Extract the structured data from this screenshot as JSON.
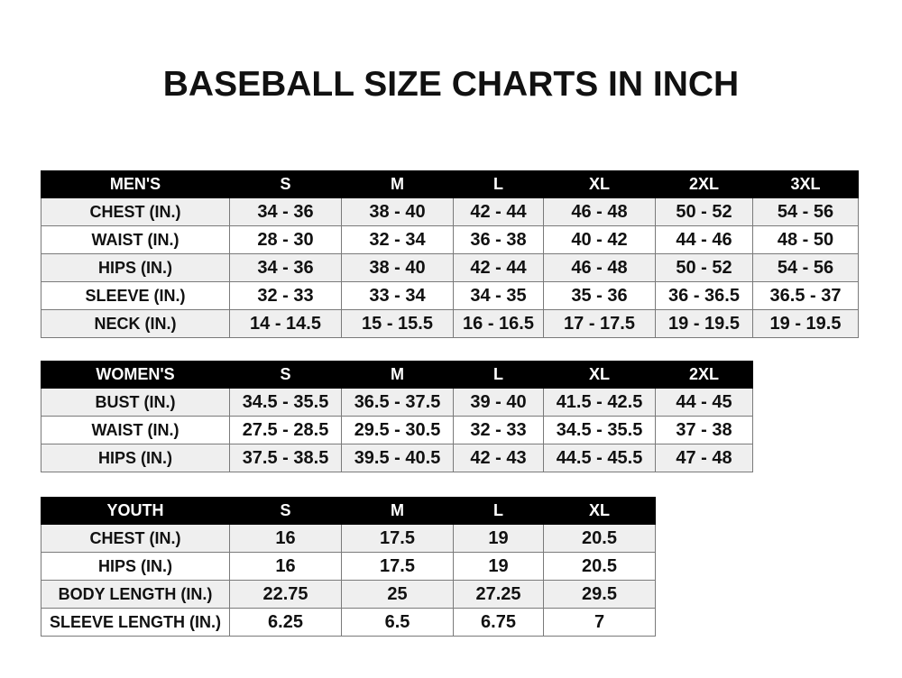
{
  "title": "BASEBALL SIZE CHARTS IN INCH",
  "tables": {
    "men": {
      "headers": [
        "MEN'S",
        "S",
        "M",
        "L",
        "XL",
        "2XL",
        "3XL"
      ],
      "rows": [
        [
          "CHEST (IN.)",
          "34 - 36",
          "38 - 40",
          "42 - 44",
          "46 - 48",
          "50 - 52",
          "54 - 56"
        ],
        [
          "WAIST (IN.)",
          "28 - 30",
          "32 - 34",
          "36 - 38",
          "40 - 42",
          "44 - 46",
          "48 - 50"
        ],
        [
          "HIPS (IN.)",
          "34 - 36",
          "38 - 40",
          "42 - 44",
          "46 - 48",
          "50 - 52",
          "54 - 56"
        ],
        [
          "SLEEVE (IN.)",
          "32 - 33",
          "33 - 34",
          "34 - 35",
          "35 - 36",
          "36 - 36.5",
          "36.5 - 37"
        ],
        [
          "NECK (IN.)",
          "14 - 14.5",
          "15 - 15.5",
          "16 - 16.5",
          "17 - 17.5",
          "19 - 19.5",
          "19 - 19.5"
        ]
      ]
    },
    "women": {
      "headers": [
        "WOMEN'S",
        "S",
        "M",
        "L",
        "XL",
        "2XL"
      ],
      "rows": [
        [
          "BUST (IN.)",
          "34.5 - 35.5",
          "36.5 - 37.5",
          "39 - 40",
          "41.5 - 42.5",
          "44 - 45"
        ],
        [
          "WAIST (IN.)",
          "27.5 - 28.5",
          "29.5 - 30.5",
          "32 - 33",
          "34.5 - 35.5",
          "37 - 38"
        ],
        [
          "HIPS (IN.)",
          "37.5 - 38.5",
          "39.5 - 40.5",
          "42 - 43",
          "44.5 - 45.5",
          "47 - 48"
        ]
      ]
    },
    "youth": {
      "headers": [
        "YOUTH",
        "S",
        "M",
        "L",
        "XL"
      ],
      "rows": [
        [
          "CHEST (IN.)",
          "16",
          "17.5",
          "19",
          "20.5"
        ],
        [
          "HIPS (IN.)",
          "16",
          "17.5",
          "19",
          "20.5"
        ],
        [
          "BODY LENGTH (IN.)",
          "22.75",
          "25",
          "27.25",
          "29.5"
        ],
        [
          "SLEEVE LENGTH (IN.)",
          "6.25",
          "6.5",
          "6.75",
          "7"
        ]
      ]
    }
  }
}
